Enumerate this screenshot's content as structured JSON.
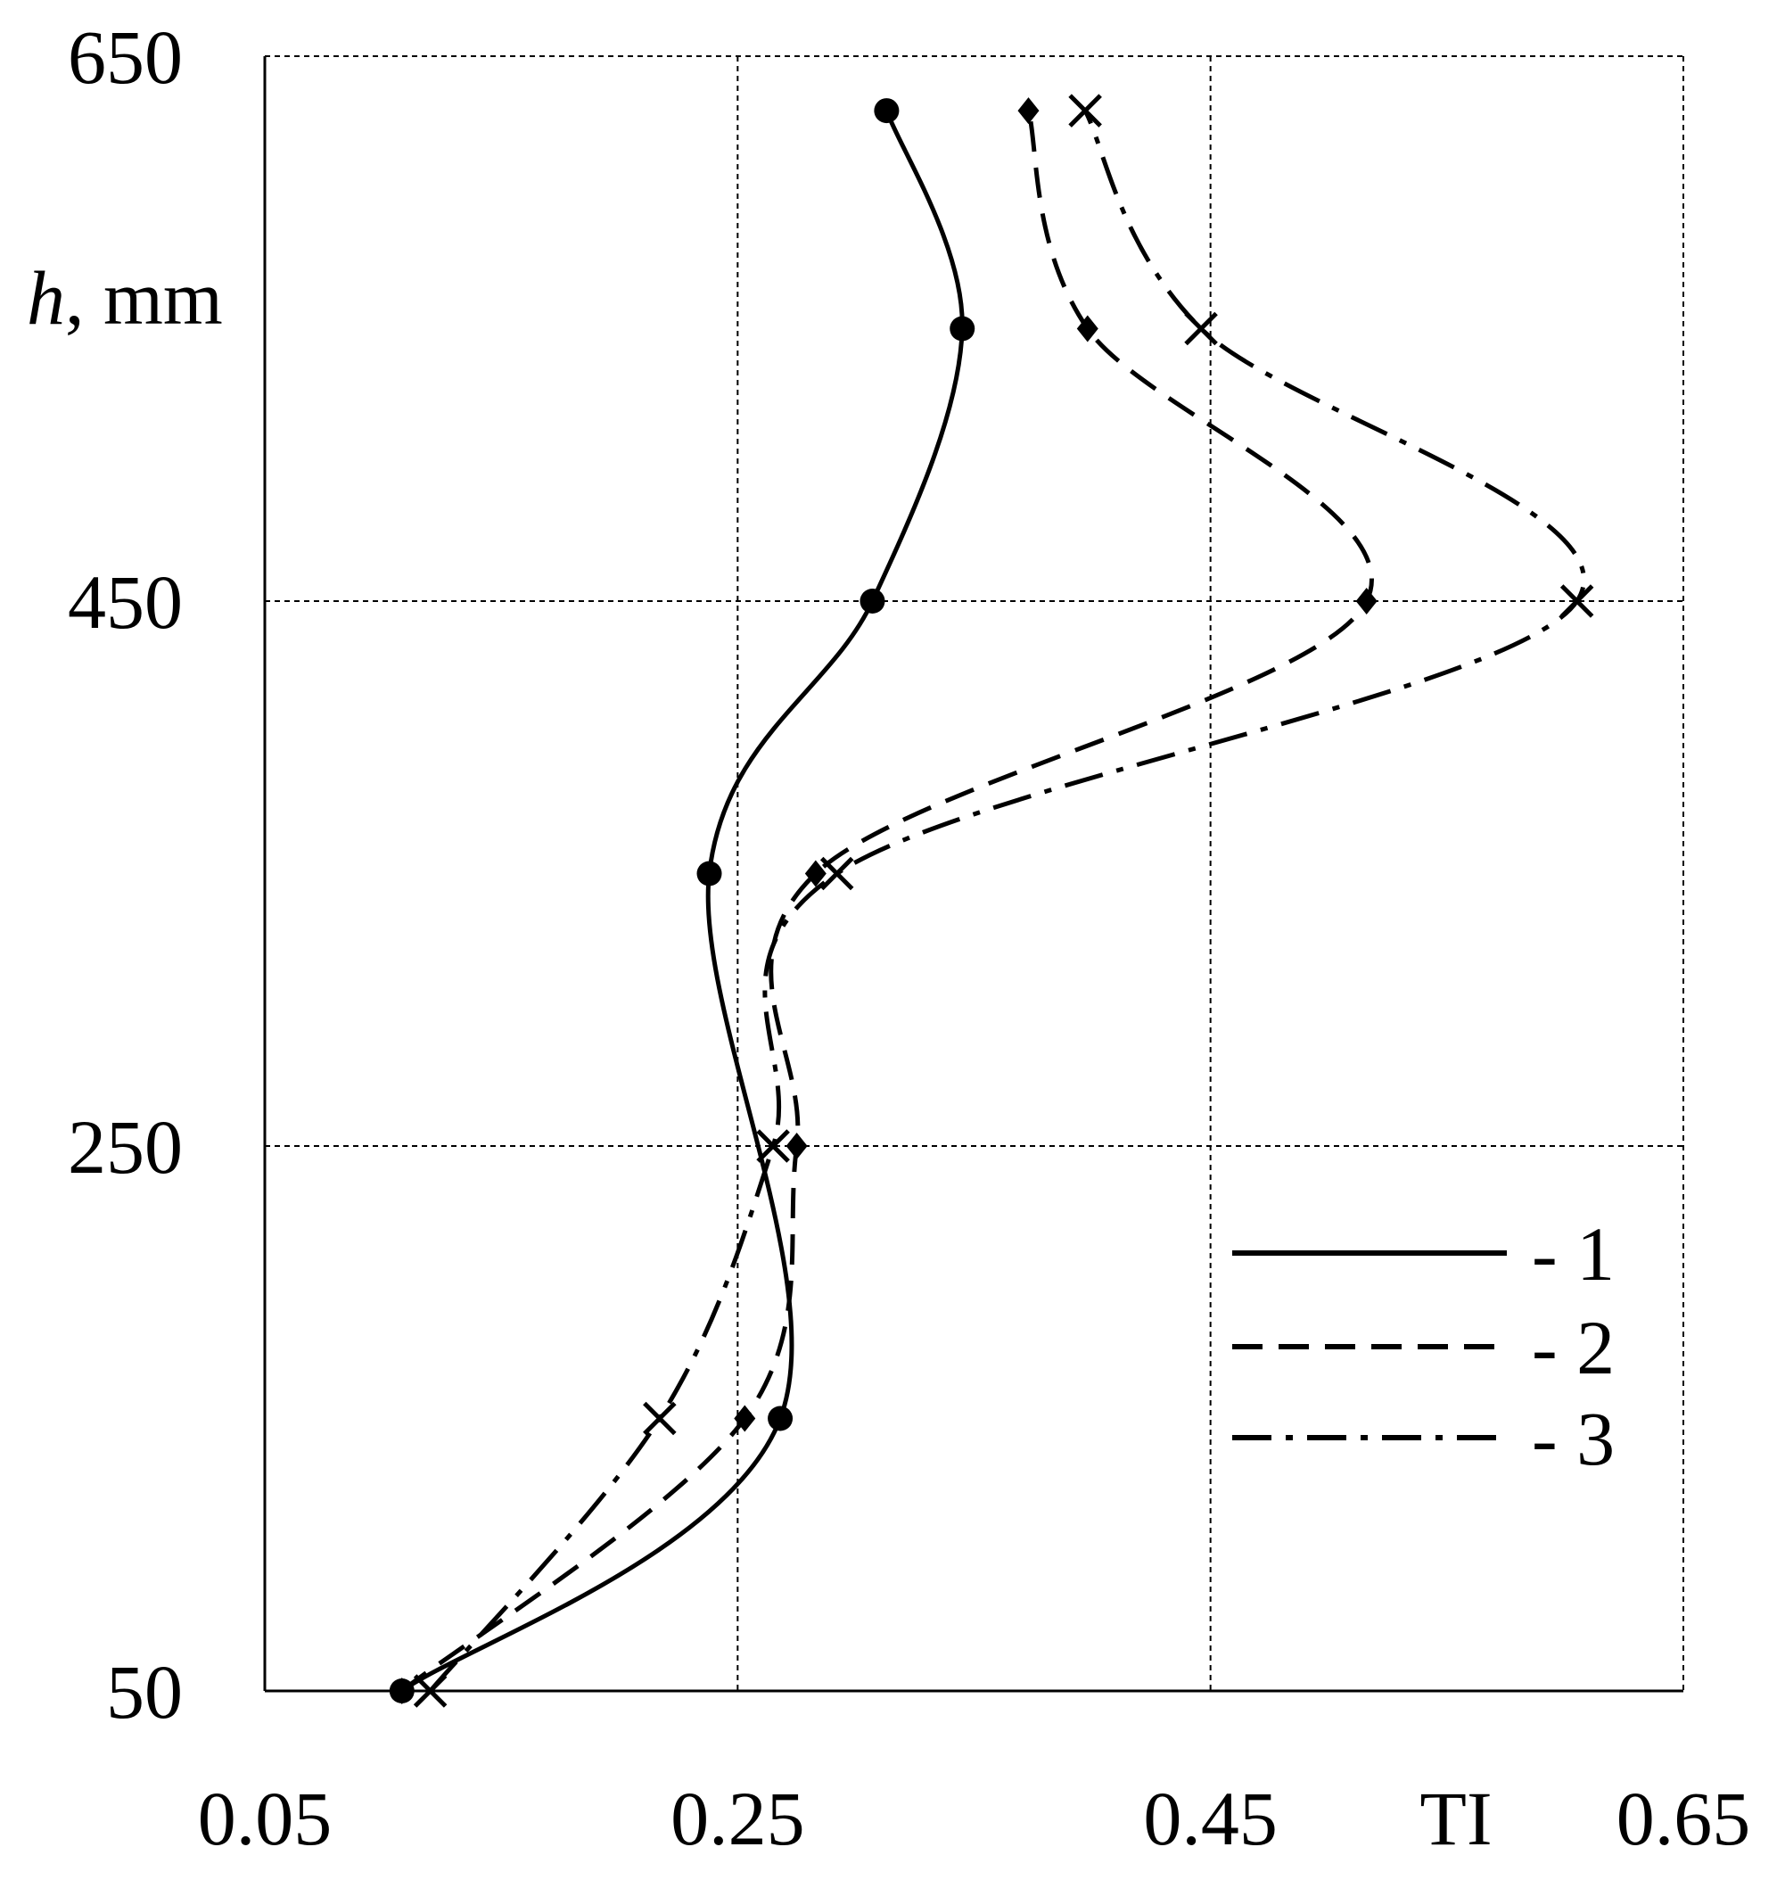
{
  "chart_data": {
    "type": "line",
    "orientation": "profile",
    "xlabel": "TI",
    "ylabel_italic": "h",
    "ylabel_rest": ", mm",
    "xlim": [
      0.05,
      0.65
    ],
    "ylim": [
      50,
      650
    ],
    "x_ticks": [
      {
        "value": 0.05,
        "label": "0.05"
      },
      {
        "value": 0.25,
        "label": "0.25"
      },
      {
        "value": 0.45,
        "label": "0.45"
      },
      {
        "value": 0.65,
        "label": "0.65"
      }
    ],
    "y_ticks": [
      {
        "value": 50,
        "label": "50"
      },
      {
        "value": 250,
        "label": "250"
      },
      {
        "value": 450,
        "label": "450"
      },
      {
        "value": 650,
        "label": "650"
      }
    ],
    "grid": true,
    "legend_position": "bottom-right",
    "series": [
      {
        "name": "1",
        "style": "solid",
        "marker": "circle",
        "points": [
          [
            0.108,
            50
          ],
          [
            0.268,
            150
          ],
          [
            0.238,
            350
          ],
          [
            0.307,
            450
          ],
          [
            0.345,
            550
          ],
          [
            0.313,
            630
          ]
        ]
      },
      {
        "name": "2",
        "style": "dashed",
        "marker": "diamond",
        "points": [
          [
            0.108,
            50
          ],
          [
            0.253,
            150
          ],
          [
            0.275,
            250
          ],
          [
            0.283,
            350
          ],
          [
            0.516,
            450
          ],
          [
            0.398,
            550
          ],
          [
            0.373,
            630
          ]
        ]
      },
      {
        "name": "3",
        "style": "dashdot",
        "marker": "x",
        "points": [
          [
            0.12,
            50
          ],
          [
            0.217,
            150
          ],
          [
            0.265,
            250
          ],
          [
            0.292,
            350
          ],
          [
            0.605,
            450
          ],
          [
            0.446,
            550
          ],
          [
            0.397,
            630
          ]
        ]
      }
    ]
  }
}
